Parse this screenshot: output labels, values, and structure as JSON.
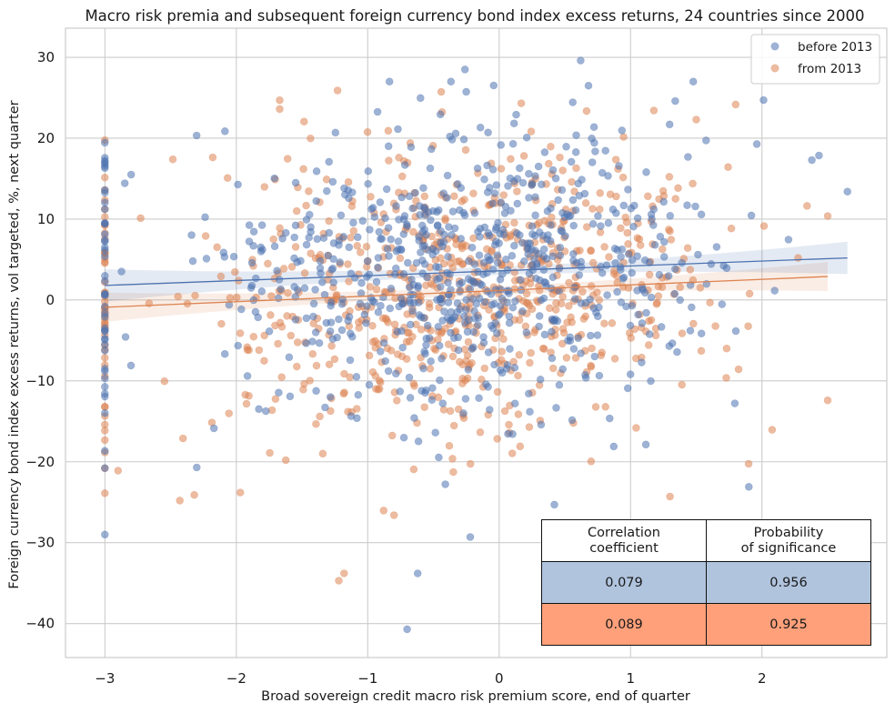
{
  "chart_data": {
    "type": "scatter",
    "title": "Macro risk premia and subsequent foreign currency bond index excess returns, 24 countries since 2000",
    "xlabel": "Broad sovereign credit macro risk premium score, end of quarter",
    "ylabel": "Foreign currency bond index excess returns, vol targeted, %, next quarter",
    "xlim": [
      -3.3,
      2.95
    ],
    "ylim": [
      -44.2,
      33.6
    ],
    "xticks": [
      -3,
      -2,
      -1,
      0,
      1,
      2
    ],
    "xtick_labels": [
      "−3",
      "−2",
      "−1",
      "0",
      "1",
      "2"
    ],
    "yticks": [
      -40,
      -30,
      -20,
      -10,
      0,
      10,
      20,
      30
    ],
    "ytick_labels": [
      "−40",
      "−30",
      "−20",
      "−10",
      "0",
      "10",
      "20",
      "30"
    ],
    "grid": true,
    "legend_position": "top-right",
    "series": [
      {
        "name": "before 2013",
        "color": "#4c72b0",
        "point_alpha": 0.55,
        "n_points": 760,
        "seed": 20130101,
        "x_range": [
          -3.0,
          2.7
        ],
        "y_sd": 9,
        "regression": {
          "x": [
            -3.0,
            2.65
          ],
          "y": [
            1.8,
            5.2
          ],
          "ci_halfwidth_ends": [
            2.0,
            2.0
          ],
          "ci_halfwidth_mid": 0.5
        },
        "sample_points": [
          {
            "x": -3.0,
            "y": 13.6
          },
          {
            "x": -2.8,
            "y": 15.5
          },
          {
            "x": -0.62,
            "y": -33.8
          },
          {
            "x": -0.7,
            "y": -40.7
          },
          {
            "x": 0.68,
            "y": 26.5
          },
          {
            "x": 0.62,
            "y": 29.6
          },
          {
            "x": -0.26,
            "y": 28.5
          },
          {
            "x": 2.65,
            "y": 13.4
          },
          {
            "x": 1.9,
            "y": -23.1
          },
          {
            "x": 2.38,
            "y": 17.3
          },
          {
            "x": 1.34,
            "y": 24.6
          },
          {
            "x": -0.22,
            "y": -29.3
          },
          {
            "x": 0.42,
            "y": -25.3
          },
          {
            "x": 0.3,
            "y": 16.5
          }
        ]
      },
      {
        "name": "from 2013",
        "color": "#dd8452",
        "point_alpha": 0.55,
        "n_points": 760,
        "seed": 20130707,
        "x_range": [
          -3.0,
          2.5
        ],
        "y_sd": 9,
        "regression": {
          "x": [
            -3.0,
            2.5
          ],
          "y": [
            -0.9,
            2.9
          ],
          "ci_halfwidth_ends": [
            1.8,
            1.8
          ],
          "ci_halfwidth_mid": 0.5
        },
        "sample_points": [
          {
            "x": -1.22,
            "y": -34.7
          },
          {
            "x": -1.18,
            "y": -33.8
          },
          {
            "x": -1.23,
            "y": 25.9
          },
          {
            "x": -1.67,
            "y": 24.7
          },
          {
            "x": -1.67,
            "y": 23.6
          },
          {
            "x": -0.8,
            "y": -26.6
          },
          {
            "x": -2.43,
            "y": -24.8
          },
          {
            "x": -2.32,
            "y": -24.1
          },
          {
            "x": -1.97,
            "y": -23.8
          },
          {
            "x": -3.0,
            "y": -20.8
          },
          {
            "x": -2.9,
            "y": -21.1
          },
          {
            "x": 2.5,
            "y": -12.4
          },
          {
            "x": 1.3,
            "y": -24.3
          },
          {
            "x": 1.5,
            "y": 22.3
          }
        ]
      }
    ],
    "stats_table": {
      "headers": [
        "Correlation\ncoefficient",
        "Probability\nof significance"
      ],
      "rows": [
        {
          "color": "#b0c4de",
          "values": [
            "0.079",
            "0.956"
          ]
        },
        {
          "color": "#ffa07a",
          "values": [
            "0.089",
            "0.925"
          ]
        }
      ]
    }
  }
}
